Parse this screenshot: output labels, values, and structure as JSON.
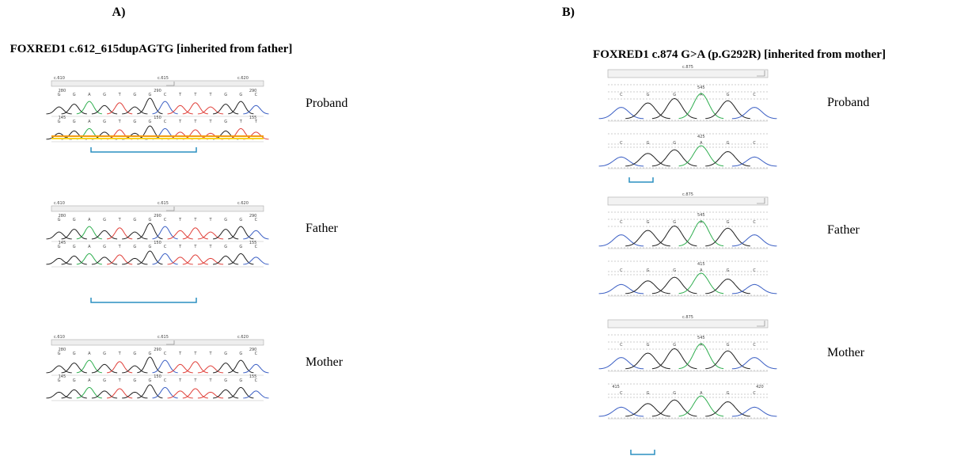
{
  "panel_a": {
    "label": "A)",
    "title": "FOXRED1 c.612_615dupAGTG [inherited from father]",
    "rows": [
      {
        "name": "Proband",
        "ruler": [
          "c.610",
          "c.615",
          "c.620"
        ],
        "tracks": [
          {
            "numbers": [
              "280",
              "290",
              "290"
            ],
            "bases": [
              "G",
              "G",
              "A",
              "G",
              "T",
              "G",
              "G",
              "C",
              "T",
              "T",
              "T",
              "G",
              "G",
              "C"
            ]
          },
          {
            "numbers": [
              "145",
              "150",
              "155"
            ],
            "bases": [
              "G",
              "G",
              "A",
              "G",
              "T",
              "G",
              "G",
              "C",
              "T",
              "T",
              "T",
              "G",
              "T",
              "T"
            ]
          }
        ]
      },
      {
        "name": "Father",
        "ruler": [
          "c.610",
          "c.615",
          "c.620"
        ],
        "tracks": [
          {
            "numbers": [
              "280",
              "290",
              "290"
            ],
            "bases": [
              "G",
              "G",
              "A",
              "G",
              "T",
              "G",
              "G",
              "C",
              "T",
              "T",
              "T",
              "G",
              "G",
              "C"
            ]
          },
          {
            "numbers": [
              "145",
              "150",
              "155"
            ],
            "bases": [
              "G",
              "G",
              "A",
              "G",
              "T",
              "G",
              "G",
              "C",
              "T",
              "T",
              "T",
              "G",
              "G",
              "C"
            ]
          }
        ]
      },
      {
        "name": "Mother",
        "ruler": [
          "c.610",
          "c.615",
          "c.620"
        ],
        "tracks": [
          {
            "numbers": [
              "280",
              "290",
              "290"
            ],
            "bases": [
              "G",
              "G",
              "A",
              "G",
              "T",
              "G",
              "G",
              "C",
              "T",
              "T",
              "T",
              "G",
              "G",
              "C"
            ]
          },
          {
            "numbers": [
              "145",
              "150",
              "155"
            ],
            "bases": [
              "G",
              "G",
              "A",
              "G",
              "T",
              "G",
              "G",
              "C",
              "T",
              "T",
              "T",
              "G",
              "G",
              "C"
            ]
          }
        ]
      }
    ]
  },
  "panel_b": {
    "label": "B)",
    "title": "FOXRED1 c.874 G>A (p.G292R) [inherited from mother]",
    "rows": [
      {
        "name": "Proband",
        "ruler": [
          "c.875"
        ],
        "tracks": [
          {
            "numbers": [
              "545"
            ],
            "bases": [
              "C",
              "G",
              "G",
              "A",
              "G",
              "C"
            ]
          },
          {
            "numbers": [
              "425"
            ],
            "bases": [
              "C",
              "G",
              "G",
              "A",
              "G",
              "C"
            ]
          }
        ]
      },
      {
        "name": "Father",
        "ruler": [
          "c.875"
        ],
        "tracks": [
          {
            "numbers": [
              "545"
            ],
            "bases": [
              "C",
              "G",
              "G",
              "A",
              "G",
              "C"
            ]
          },
          {
            "numbers": [
              "415"
            ],
            "bases": [
              "C",
              "G",
              "G",
              "A",
              "G",
              "C"
            ]
          }
        ]
      },
      {
        "name": "Mother",
        "ruler": [
          "c.875"
        ],
        "tracks": [
          {
            "numbers": [
              "545"
            ],
            "bases": [
              "C",
              "G",
              "G",
              "A",
              "G",
              "C"
            ]
          },
          {
            "numbers": [
              "415",
              "420"
            ],
            "bases": [
              "C",
              "G",
              "G",
              "A",
              "G",
              "C"
            ]
          }
        ]
      }
    ]
  }
}
